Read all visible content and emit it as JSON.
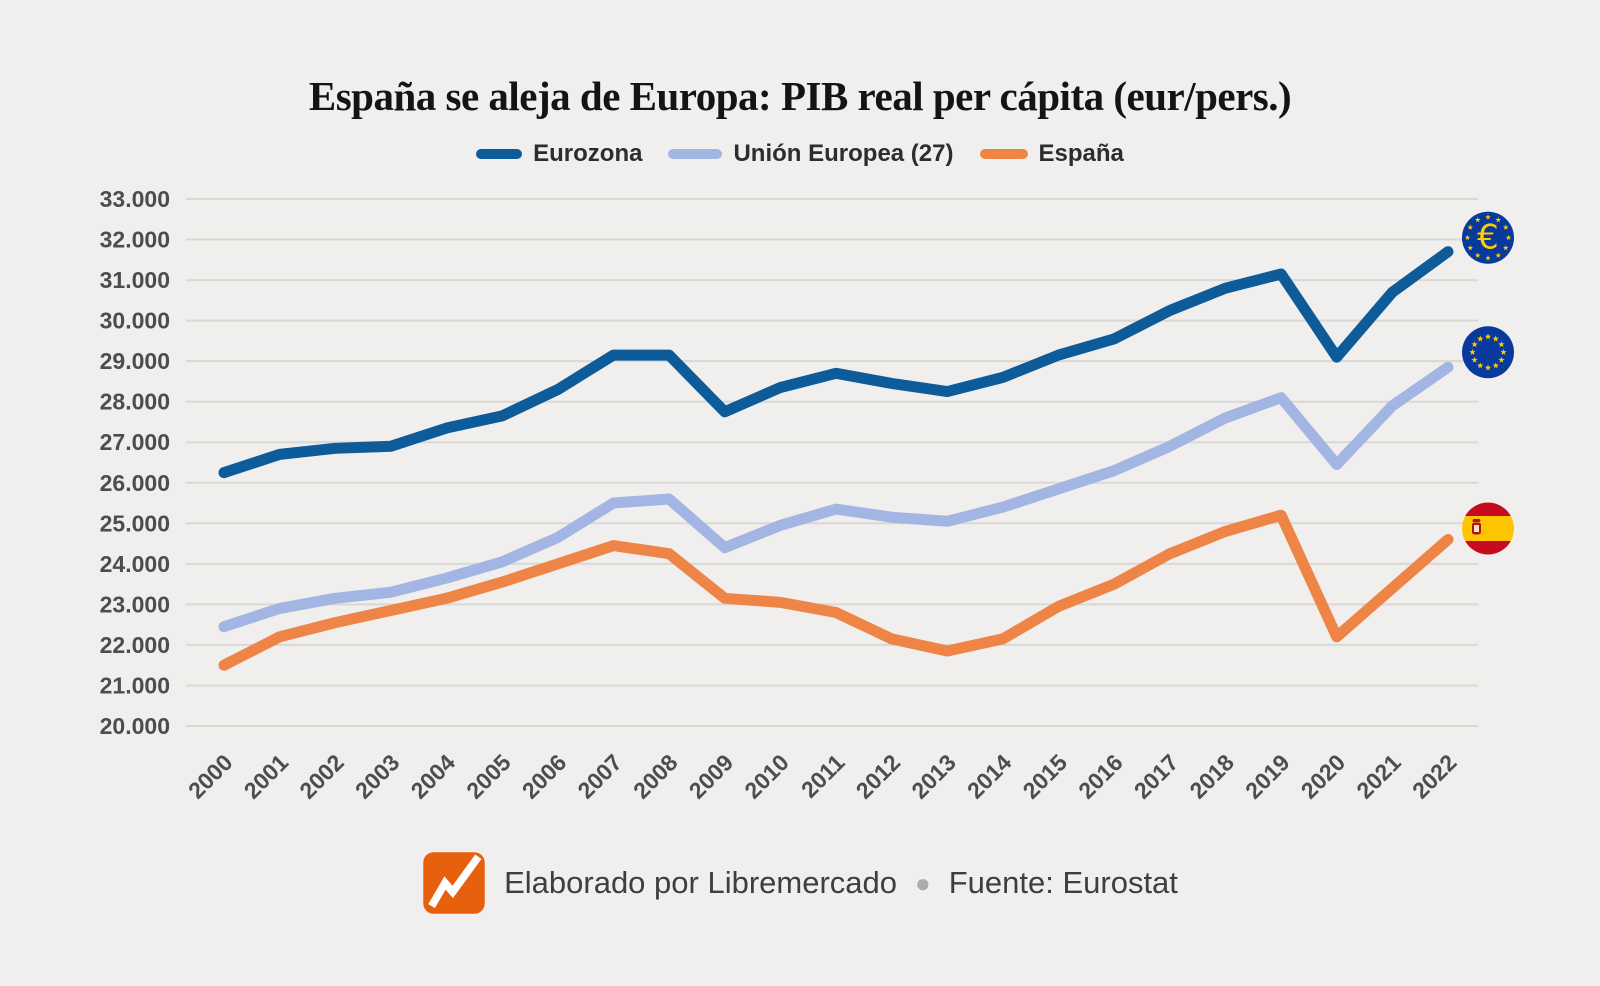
{
  "title": "España se aleja de Europa: PIB real per cápita (eur/pers.)",
  "footer": {
    "credit": "Elaborado por Libremercado",
    "separator": "●",
    "source": "Fuente: Eurostat"
  },
  "colors": {
    "background": "#f0efed",
    "gridline": "#d9d8d5",
    "axis_text": "#4d4d4d",
    "eu_blue": "#08399c",
    "star_yellow": "#ffcc00",
    "spain_red": "#c60b1e",
    "spain_yellow": "#ffc400",
    "spain_crest": "#ad1519",
    "logo_orange": "#e7600e"
  },
  "chart_data": {
    "type": "line",
    "title": "España se aleja de Europa: PIB real per cápita (eur/pers.)",
    "xlabel": "",
    "ylabel": "",
    "ylim": [
      20000,
      33000
    ],
    "grid": "horizontal",
    "legend_position": "top",
    "categories": [
      "2000",
      "2001",
      "2002",
      "2003",
      "2004",
      "2005",
      "2006",
      "2007",
      "2008",
      "2009",
      "2010",
      "2011",
      "2012",
      "2013",
      "2014",
      "2015",
      "2016",
      "2017",
      "2018",
      "2019",
      "2020",
      "2021",
      "2022"
    ],
    "y_ticks": [
      {
        "value": 20000,
        "label": "20.000"
      },
      {
        "value": 21000,
        "label": "21.000"
      },
      {
        "value": 22000,
        "label": "22.000"
      },
      {
        "value": 23000,
        "label": "23.000"
      },
      {
        "value": 24000,
        "label": "24.000"
      },
      {
        "value": 25000,
        "label": "25.000"
      },
      {
        "value": 26000,
        "label": "26.000"
      },
      {
        "value": 27000,
        "label": "27.000"
      },
      {
        "value": 28000,
        "label": "28.000"
      },
      {
        "value": 29000,
        "label": "29.000"
      },
      {
        "value": 30000,
        "label": "30.000"
      },
      {
        "value": 31000,
        "label": "31.000"
      },
      {
        "value": 32000,
        "label": "32.000"
      },
      {
        "value": 33000,
        "label": "33.000"
      }
    ],
    "series": [
      {
        "name": "Eurozona",
        "color": "#0e5b99",
        "badge": "euro-coin",
        "values": [
          26250,
          26700,
          26850,
          26900,
          27350,
          27650,
          28300,
          29150,
          29150,
          27750,
          28350,
          28700,
          28450,
          28250,
          28600,
          29150,
          29550,
          30250,
          30800,
          31150,
          29100,
          30700,
          31700
        ]
      },
      {
        "name": "Unión Europea (27)",
        "color": "#a3b5e3",
        "badge": "eu-flag",
        "values": [
          22450,
          22900,
          23150,
          23300,
          23650,
          24050,
          24650,
          25500,
          25600,
          24400,
          24950,
          25350,
          25150,
          25050,
          25400,
          25850,
          26300,
          26900,
          27600,
          28100,
          26450,
          27900,
          28850
        ]
      },
      {
        "name": "España",
        "color": "#ee8546",
        "badge": "spain-flag",
        "values": [
          21500,
          22200,
          22550,
          22850,
          23150,
          23550,
          24000,
          24450,
          24250,
          23150,
          23050,
          22800,
          22150,
          21850,
          22150,
          22950,
          23500,
          24250,
          24800,
          25200,
          22200,
          23400,
          24600
        ]
      }
    ]
  }
}
